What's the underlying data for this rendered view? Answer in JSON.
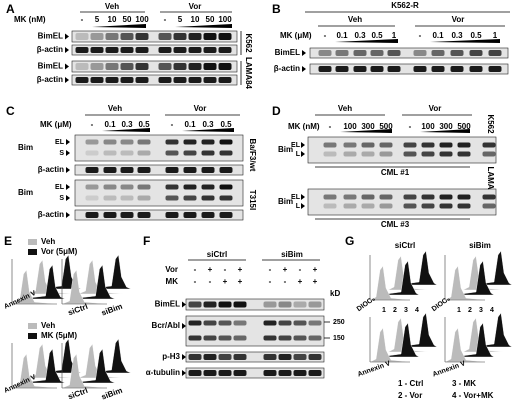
{
  "panel_a": {
    "label": "A",
    "groups": [
      "Veh",
      "Vor"
    ],
    "treatment": "MK (nM)",
    "lanes": [
      "-",
      "5",
      "10",
      "50",
      "100",
      "-",
      "5",
      "10",
      "50",
      "100"
    ],
    "rows": [
      "BimEL",
      "β-actin",
      "BimEL",
      "β-actin"
    ],
    "cell_lines": [
      "K562",
      "LAMA84"
    ]
  },
  "panel_b": {
    "label": "B",
    "cell_line": "K562-R",
    "groups": [
      "Veh",
      "Vor"
    ],
    "treatment": "MK (μM)",
    "lanes": [
      "-",
      "0.1",
      "0.3",
      "0.5",
      "1",
      "-",
      "0.1",
      "0.3",
      "0.5",
      "1"
    ],
    "rows": [
      "BimEL",
      "β-actin"
    ]
  },
  "panel_c": {
    "label": "C",
    "groups": [
      "Veh",
      "Vor"
    ],
    "treatment": "MK (μM)",
    "lanes": [
      "-",
      "0.1",
      "0.3",
      "0.5",
      "-",
      "0.1",
      "0.3",
      "0.5"
    ],
    "rows": [
      "Bim",
      "β-actin",
      "Bim",
      "β-actin"
    ],
    "isoforms": [
      "EL",
      "S"
    ],
    "cell_lines": [
      "Ba/F3/wt",
      "T315I"
    ]
  },
  "panel_d": {
    "label": "D",
    "groups": [
      "Veh",
      "Vor"
    ],
    "treatment": "MK (nM)",
    "lanes": [
      "-",
      "100",
      "300",
      "500",
      "-",
      "100",
      "300",
      "500"
    ],
    "controls": [
      "K562",
      "LAMA"
    ],
    "protein": "Bim",
    "isoforms": [
      "EL",
      "L"
    ],
    "samples": [
      "CML #1",
      "CML #3"
    ]
  },
  "panel_e": {
    "label": "E",
    "experiments": [
      {
        "legend": [
          "Veh",
          "Vor (5μM)"
        ]
      },
      {
        "legend": [
          "Veh",
          "MK (5μM)"
        ]
      }
    ],
    "axis": "Annexin V",
    "groups": [
      "siCtrl",
      "siBim"
    ]
  },
  "panel_f": {
    "label": "F",
    "groups": [
      "siCtrl",
      "siBim"
    ],
    "treatments": [
      {
        "name": "Vor",
        "lanes": [
          "-",
          "+",
          "-",
          "+",
          "-",
          "+",
          "-",
          "+"
        ]
      },
      {
        "name": "MK",
        "lanes": [
          "-",
          "-",
          "+",
          "+",
          "-",
          "-",
          "+",
          "+"
        ]
      }
    ],
    "mw_unit": "kD",
    "mw_markers": [
      250,
      150
    ],
    "rows": [
      "BimEL",
      "Bcr/Abl",
      "p-H3",
      "α-tubulin"
    ]
  },
  "panel_g": {
    "label": "G",
    "groups": [
      "siCtrl",
      "siBim"
    ],
    "y_axis": "DIOC₆",
    "x_axis": "Annexin V",
    "ticks": [
      "1",
      "2",
      "3",
      "4"
    ],
    "legend": [
      "1 - Ctrl",
      "2 - Vor",
      "3 - MK",
      "4 - Vor+MK"
    ]
  }
}
